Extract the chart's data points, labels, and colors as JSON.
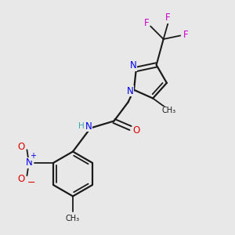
{
  "bg_color": "#e8e8e8",
  "bond_color": "#1a1a1a",
  "N_color": "#0000ee",
  "O_color": "#dd0000",
  "F_color": "#cc00cc",
  "H_color": "#33aaaa",
  "figsize": [
    3.0,
    3.0
  ],
  "dpi": 100,
  "xlim": [
    0,
    10
  ],
  "ylim": [
    0,
    10
  ]
}
